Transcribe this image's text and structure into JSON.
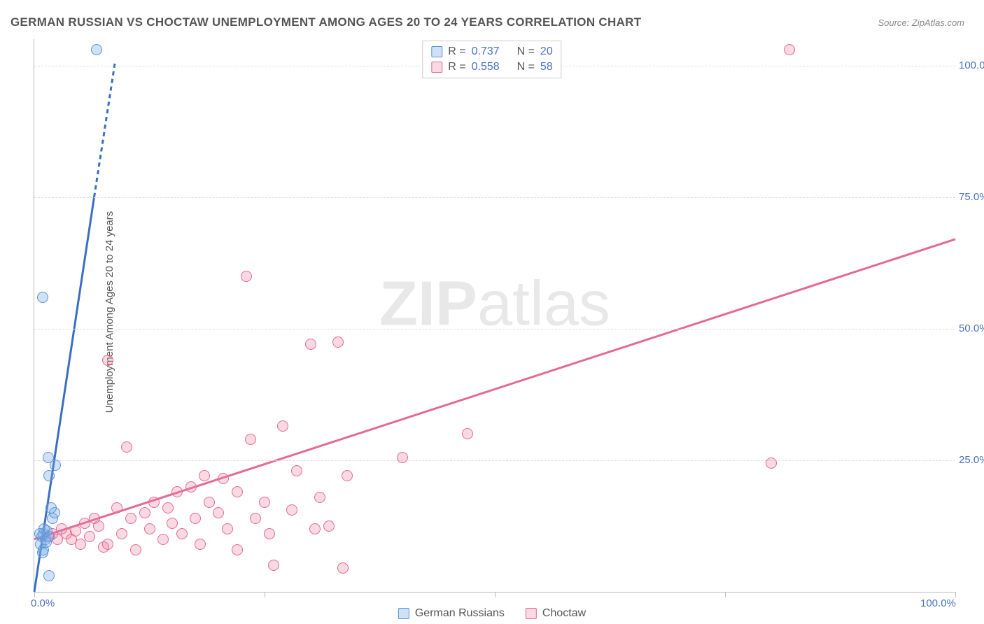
{
  "title": "GERMAN RUSSIAN VS CHOCTAW UNEMPLOYMENT AMONG AGES 20 TO 24 YEARS CORRELATION CHART",
  "source": "Source: ZipAtlas.com",
  "yaxis_label": "Unemployment Among Ages 20 to 24 years",
  "watermark_a": "ZIP",
  "watermark_b": "atlas",
  "xlim": [
    0,
    100
  ],
  "ylim": [
    0,
    105
  ],
  "xtick_0": "0.0%",
  "xtick_100": "100.0%",
  "ytick_labels": {
    "25": "25.0%",
    "50": "50.0%",
    "75": "75.0%",
    "100": "100.0%"
  },
  "x_major_ticks": [
    0,
    25,
    50,
    75,
    100
  ],
  "y_gridlines": [
    25,
    50,
    75,
    100
  ],
  "series": {
    "german_russians": {
      "label": "German Russians",
      "color_fill": "rgba(120,170,230,0.35)",
      "color_stroke": "#5a94d6",
      "R": "0.737",
      "N": "20",
      "trend": {
        "x1": 0,
        "y1": 0,
        "x2": 6.5,
        "y2": 75,
        "dash_from_y": 75,
        "x3": 8.8,
        "y3": 101
      },
      "points": [
        [
          0.8,
          10.5
        ],
        [
          1.0,
          11.0
        ],
        [
          1.2,
          10.0
        ],
        [
          1.4,
          11.5
        ],
        [
          0.7,
          9.0
        ],
        [
          1.0,
          8.0
        ],
        [
          1.3,
          9.5
        ],
        [
          1.6,
          10.5
        ],
        [
          1.1,
          12.0
        ],
        [
          0.9,
          7.5
        ],
        [
          2.0,
          14.0
        ],
        [
          2.2,
          15.0
        ],
        [
          1.8,
          16.0
        ],
        [
          0.6,
          11.0
        ],
        [
          1.6,
          22.0
        ],
        [
          1.5,
          25.5
        ],
        [
          2.3,
          24.0
        ],
        [
          0.9,
          56.0
        ],
        [
          1.6,
          3.0
        ],
        [
          6.8,
          103.0
        ]
      ]
    },
    "choctaw": {
      "label": "Choctaw",
      "color_fill": "rgba(235,130,160,0.30)",
      "color_stroke": "#e56a93",
      "R": "0.558",
      "N": "58",
      "trend": {
        "x1": 0,
        "y1": 10,
        "x2": 100,
        "y2": 67
      },
      "points": [
        [
          1.5,
          10.5
        ],
        [
          2.0,
          11.0
        ],
        [
          2.5,
          10.0
        ],
        [
          3.0,
          12.0
        ],
        [
          3.5,
          11.0
        ],
        [
          4.0,
          10.0
        ],
        [
          4.5,
          11.5
        ],
        [
          5.0,
          9.0
        ],
        [
          5.5,
          13.0
        ],
        [
          6.0,
          10.5
        ],
        [
          6.5,
          14.0
        ],
        [
          7.0,
          12.5
        ],
        [
          7.5,
          8.5
        ],
        [
          8.0,
          44.0
        ],
        [
          8.0,
          9.0
        ],
        [
          9.0,
          16.0
        ],
        [
          9.5,
          11.0
        ],
        [
          10.0,
          27.5
        ],
        [
          10.5,
          14.0
        ],
        [
          11.0,
          8.0
        ],
        [
          12.0,
          15.0
        ],
        [
          12.5,
          12.0
        ],
        [
          13.0,
          17.0
        ],
        [
          14.0,
          10.0
        ],
        [
          14.5,
          16.0
        ],
        [
          15.0,
          13.0
        ],
        [
          15.5,
          19.0
        ],
        [
          16.0,
          11.0
        ],
        [
          17.0,
          20.0
        ],
        [
          17.5,
          14.0
        ],
        [
          18.0,
          9.0
        ],
        [
          18.5,
          22.0
        ],
        [
          19.0,
          17.0
        ],
        [
          20.0,
          15.0
        ],
        [
          20.5,
          21.5
        ],
        [
          21.0,
          12.0
        ],
        [
          22.0,
          8.0
        ],
        [
          22.0,
          19.0
        ],
        [
          23.0,
          60.0
        ],
        [
          23.5,
          29.0
        ],
        [
          24.0,
          14.0
        ],
        [
          25.0,
          17.0
        ],
        [
          25.5,
          11.0
        ],
        [
          26.0,
          5.0
        ],
        [
          27.0,
          31.5
        ],
        [
          28.0,
          15.5
        ],
        [
          28.5,
          23.0
        ],
        [
          30.0,
          47.0
        ],
        [
          30.5,
          12.0
        ],
        [
          31.0,
          18.0
        ],
        [
          32.0,
          12.5
        ],
        [
          33.0,
          47.5
        ],
        [
          33.5,
          4.5
        ],
        [
          34.0,
          22.0
        ],
        [
          40.0,
          25.5
        ],
        [
          47.0,
          30.0
        ],
        [
          80.0,
          24.5
        ],
        [
          82.0,
          103.0
        ]
      ]
    }
  },
  "legend_labels": {
    "R": "R =",
    "N": "N ="
  }
}
